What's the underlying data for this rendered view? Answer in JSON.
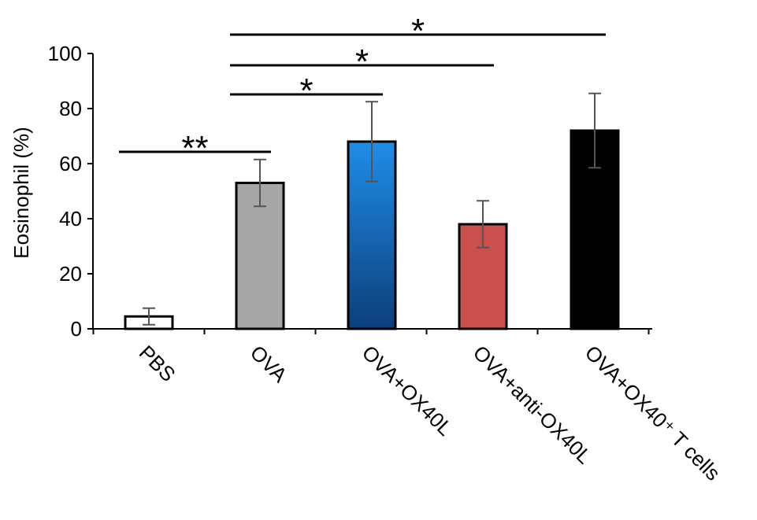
{
  "chart_data": {
    "type": "bar",
    "title": "",
    "xlabel": "",
    "ylabel": "Eosinophil (%)",
    "ylim": [
      0,
      100
    ],
    "yticks": [
      0,
      20,
      40,
      60,
      80,
      100
    ],
    "grid": false,
    "legend": "none",
    "categories": [
      "PBS",
      "OVA",
      "OVA+OX40L",
      "OVA+anti-OX40L",
      "OVA+OX40⁺ T cells"
    ],
    "values": [
      4.5,
      53,
      68,
      38,
      72
    ],
    "error": [
      3,
      8.5,
      14.5,
      8.5,
      13.5
    ],
    "bar_colors": [
      "#ffffff",
      "#a6a6a6",
      "#1f6fc8",
      "#c9504d",
      "#000000"
    ],
    "significance": [
      {
        "from": 0,
        "to": 1,
        "label": "**"
      },
      {
        "from": 1,
        "to": 2,
        "label": "*"
      },
      {
        "from": 1,
        "to": 3,
        "label": "*"
      },
      {
        "from": 1,
        "to": 4,
        "label": "*"
      }
    ]
  }
}
